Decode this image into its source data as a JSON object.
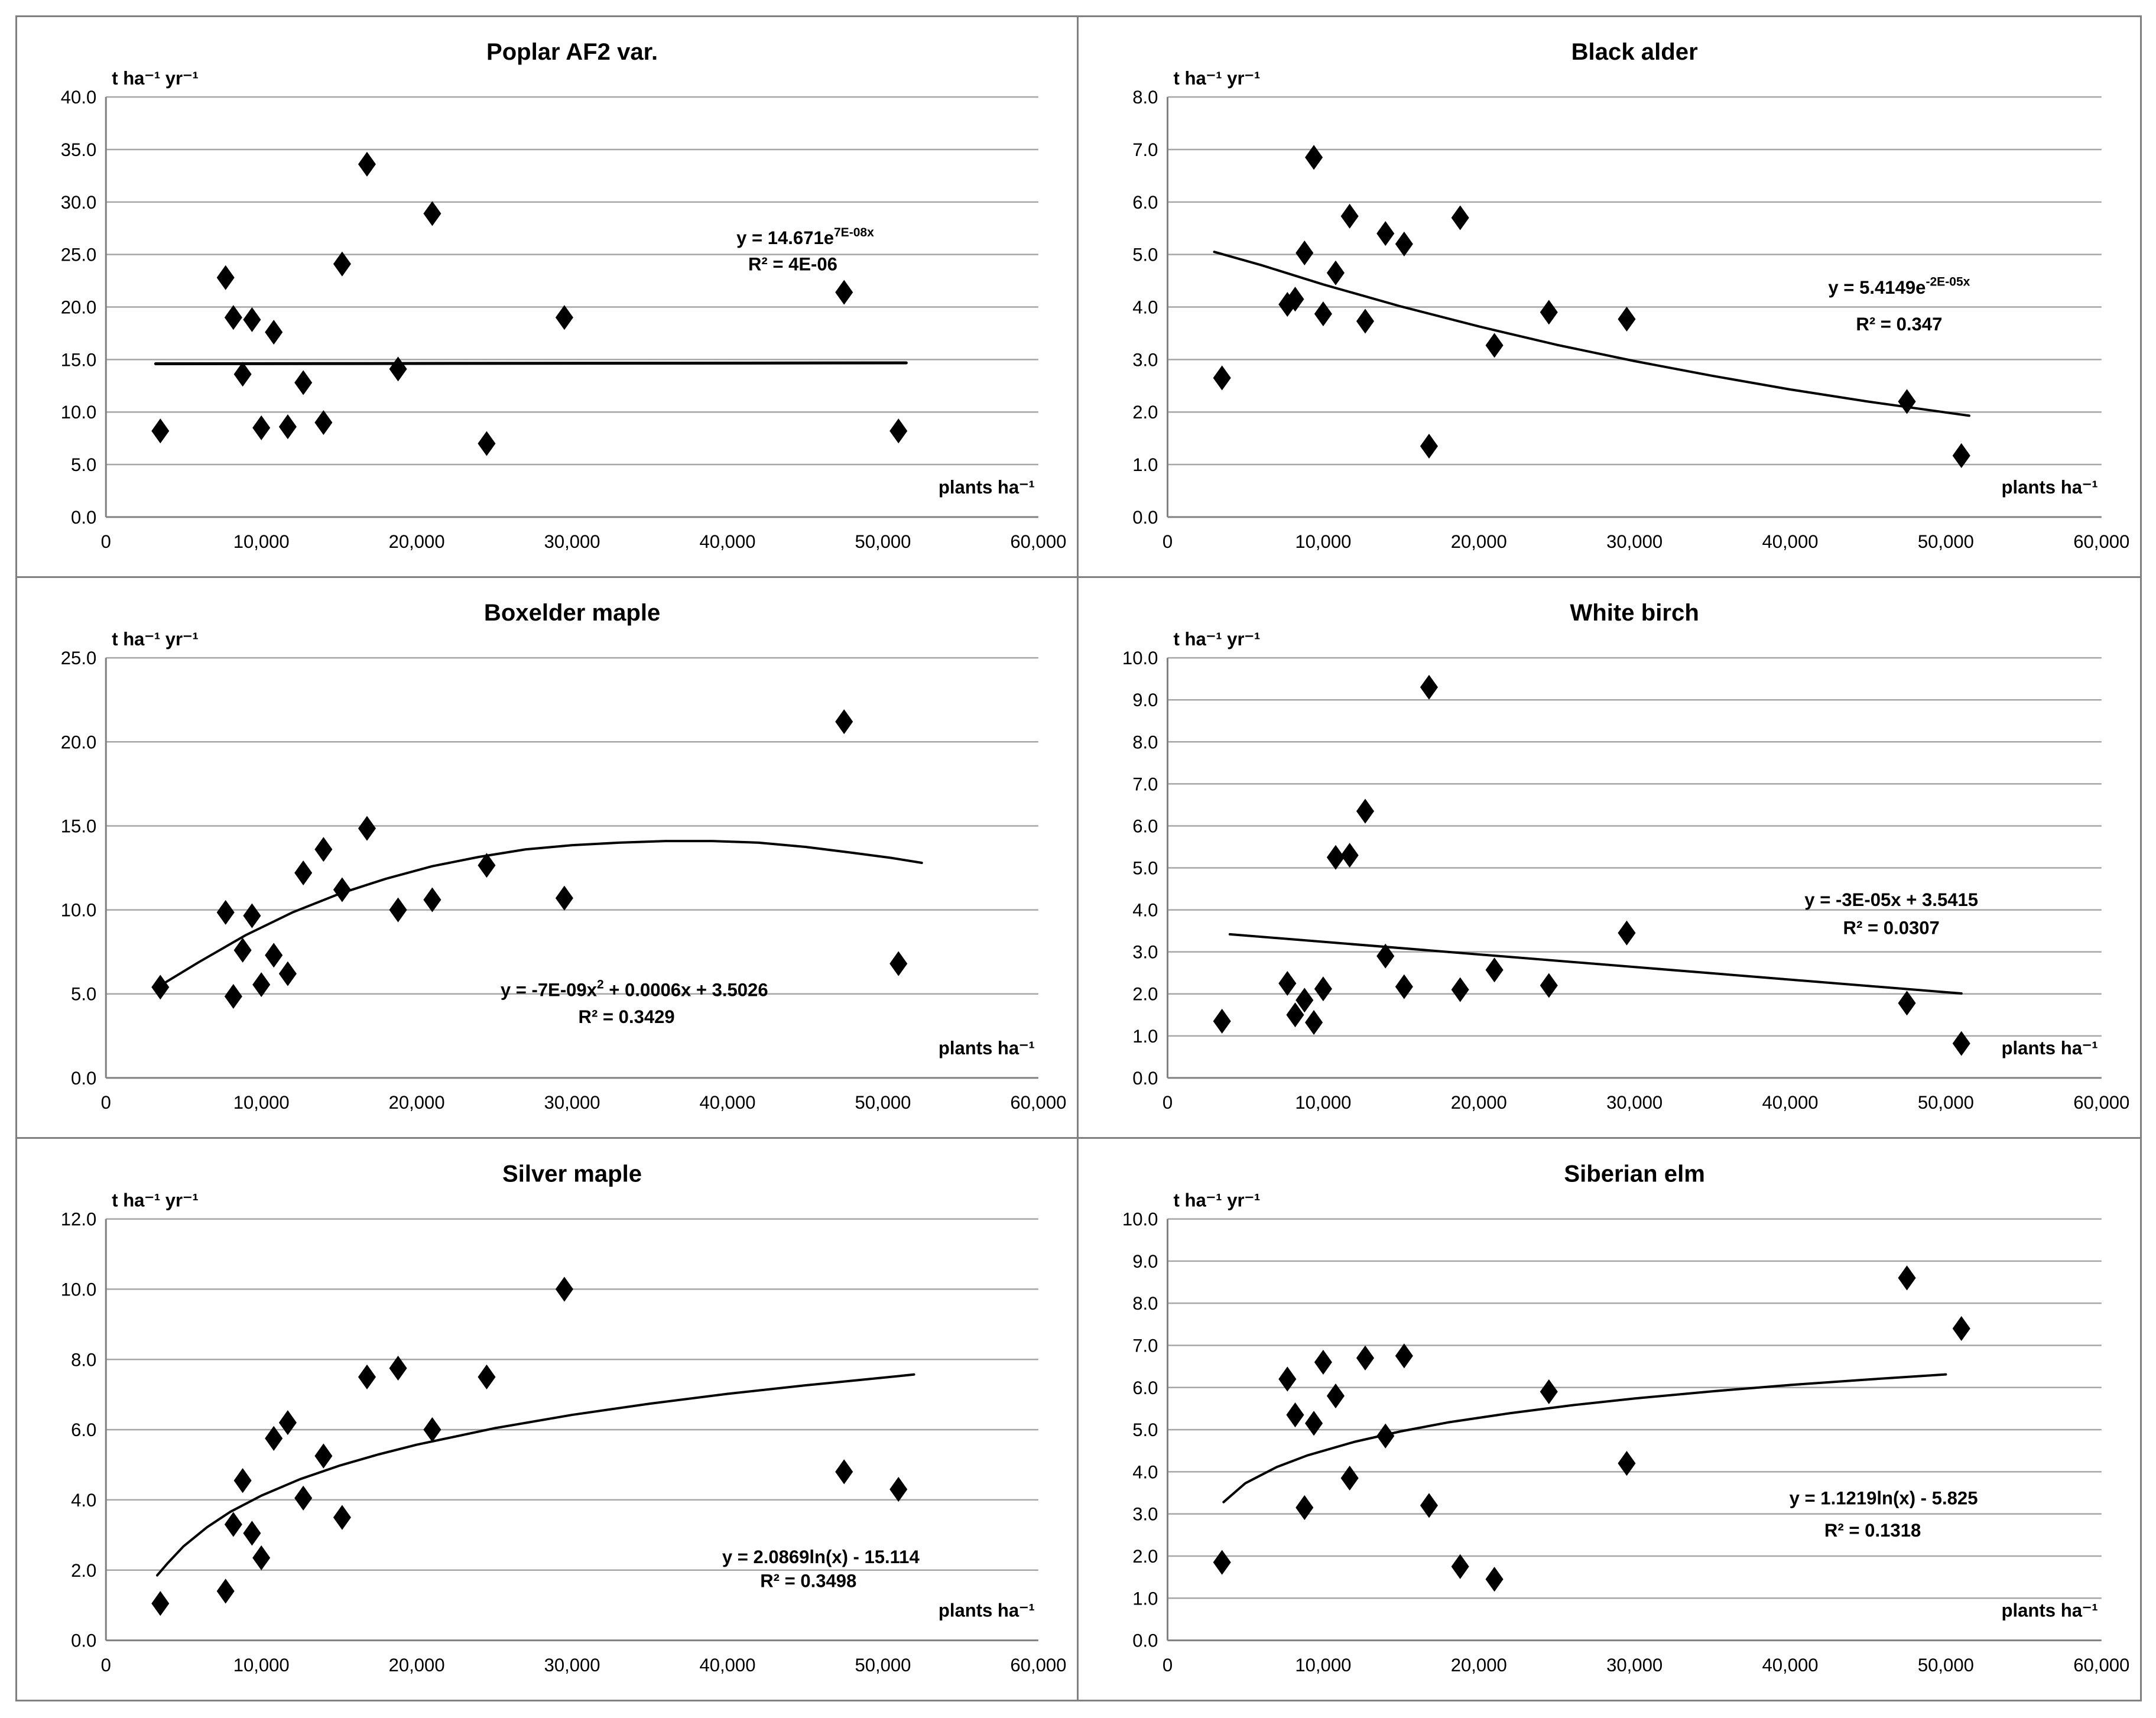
{
  "figure": {
    "background": "#ffffff",
    "panel_border_color": "#808080",
    "gridline_color": "#a6a6a6",
    "axis_color": "#808080",
    "marker_color": "#000000",
    "trendline_color": "#000000",
    "text_color": "#000000"
  },
  "chart_data": [
    {
      "type": "scatter",
      "title": "Poplar AF2 var.",
      "ylabel": "t ha⁻¹ yr⁻¹",
      "xlabel": "plants ha⁻¹",
      "xlim": [
        0,
        60000
      ],
      "ylim": [
        0,
        40
      ],
      "grid": true,
      "xtick_labels": [
        "0",
        "10,000",
        "20,000",
        "30,000",
        "40,000",
        "50,000",
        "60,000"
      ],
      "ytick_labels": [
        "0.0",
        "5.0",
        "10.0",
        "15.0",
        "20.0",
        "25.0",
        "30.0",
        "35.0",
        "40.0"
      ],
      "x": [
        3500,
        7700,
        8200,
        8800,
        9400,
        10000,
        10800,
        11700,
        12700,
        14000,
        15200,
        16800,
        18800,
        21000,
        24500,
        29500,
        47500,
        51000
      ],
      "y": [
        8.2,
        22.8,
        19.0,
        13.6,
        18.8,
        8.5,
        17.6,
        8.6,
        12.8,
        9.0,
        24.1,
        33.6,
        14.1,
        28.9,
        7.0,
        19.0,
        21.4,
        8.2
      ],
      "trend": {
        "shape": "exponential-flat",
        "width": 5,
        "points": [
          [
            3200,
            14.6
          ],
          [
            51500,
            14.68
          ]
        ]
      },
      "equation": {
        "parts": [
          {
            "t": "y = 14.671e"
          },
          {
            "t": "7E-08x",
            "sup": true
          }
        ],
        "r2": "R² = 4E-06",
        "pos": [
          45000,
          26.6
        ],
        "r2_pos": [
          44200,
          24.1
        ]
      }
    },
    {
      "type": "scatter",
      "title": "Black alder",
      "ylabel": "t ha⁻¹ yr⁻¹",
      "xlabel": "plants ha⁻¹",
      "xlim": [
        0,
        60000
      ],
      "ylim": [
        0,
        8
      ],
      "grid": true,
      "xtick_labels": [
        "0",
        "10,000",
        "20,000",
        "30,000",
        "40,000",
        "50,000",
        "60,000"
      ],
      "ytick_labels": [
        "0.0",
        "1.0",
        "2.0",
        "3.0",
        "4.0",
        "5.0",
        "6.0",
        "7.0",
        "8.0"
      ],
      "x": [
        3500,
        7700,
        8200,
        8800,
        9400,
        10000,
        10800,
        11700,
        12700,
        14000,
        15200,
        16800,
        18800,
        21000,
        24500,
        29500,
        47500,
        51000
      ],
      "y": [
        2.65,
        4.05,
        4.15,
        5.03,
        6.85,
        3.87,
        4.65,
        5.73,
        3.73,
        5.4,
        5.2,
        1.35,
        5.7,
        3.27,
        3.9,
        3.77,
        2.2,
        1.17
      ],
      "trend": {
        "shape": "exponential-decay",
        "width": 4,
        "points": [
          [
            3000,
            5.05
          ],
          [
            6000,
            4.8
          ],
          [
            10000,
            4.43
          ],
          [
            15000,
            4.01
          ],
          [
            20000,
            3.63
          ],
          [
            25000,
            3.28
          ],
          [
            30000,
            2.97
          ],
          [
            35000,
            2.69
          ],
          [
            40000,
            2.43
          ],
          [
            45000,
            2.2
          ],
          [
            51500,
            1.93
          ]
        ]
      },
      "equation": {
        "parts": [
          {
            "t": "y = 5.4149e"
          },
          {
            "t": "-2E-05x",
            "sup": true
          }
        ],
        "r2": "R² = 0.347",
        "pos": [
          47000,
          4.38
        ],
        "r2_pos": [
          47000,
          3.68
        ]
      }
    },
    {
      "type": "scatter",
      "title": "Boxelder maple",
      "ylabel": "t ha⁻¹ yr⁻¹",
      "xlabel": "plants ha⁻¹",
      "xlim": [
        0,
        60000
      ],
      "ylim": [
        0,
        25
      ],
      "grid": true,
      "xtick_labels": [
        "0",
        "10,000",
        "20,000",
        "30,000",
        "40,000",
        "50,000",
        "60,000"
      ],
      "ytick_labels": [
        "0.0",
        "5.0",
        "10.0",
        "15.0",
        "20.0",
        "25.0"
      ],
      "x": [
        3500,
        7700,
        8200,
        8800,
        9400,
        10000,
        10800,
        11700,
        12700,
        14000,
        15200,
        16800,
        18800,
        21000,
        24500,
        29500,
        47500,
        51000
      ],
      "y": [
        5.4,
        9.85,
        4.85,
        7.6,
        9.65,
        5.55,
        7.3,
        6.2,
        12.2,
        13.6,
        11.2,
        14.85,
        10.0,
        10.6,
        12.65,
        10.7,
        21.2,
        6.8
      ],
      "trend": {
        "shape": "polynomial",
        "width": 4,
        "points": [
          [
            3500,
            5.5
          ],
          [
            6000,
            6.9
          ],
          [
            9000,
            8.5
          ],
          [
            12000,
            9.85
          ],
          [
            15000,
            10.95
          ],
          [
            18000,
            11.85
          ],
          [
            21000,
            12.6
          ],
          [
            24000,
            13.15
          ],
          [
            27000,
            13.6
          ],
          [
            30000,
            13.85
          ],
          [
            33000,
            14.0
          ],
          [
            36000,
            14.1
          ],
          [
            39000,
            14.1
          ],
          [
            42000,
            14.0
          ],
          [
            45000,
            13.75
          ],
          [
            48000,
            13.4
          ],
          [
            50500,
            13.1
          ],
          [
            52500,
            12.8
          ]
        ]
      },
      "equation": {
        "parts": [
          {
            "t": "y = -7E-09x"
          },
          {
            "t": "2",
            "sup": true
          },
          {
            "t": " + 0.0006x + 3.5026"
          }
        ],
        "r2": "R² = 0.3429",
        "pos": [
          34000,
          5.25
        ],
        "r2_pos": [
          33500,
          3.65
        ]
      }
    },
    {
      "type": "scatter",
      "title": "White birch",
      "ylabel": "t ha⁻¹ yr⁻¹",
      "xlabel": "plants ha⁻¹",
      "xlim": [
        0,
        60000
      ],
      "ylim": [
        0,
        10
      ],
      "grid": true,
      "xtick_labels": [
        "0",
        "10,000",
        "20,000",
        "30,000",
        "40,000",
        "50,000",
        "60,000"
      ],
      "ytick_labels": [
        "0.0",
        "1.0",
        "2.0",
        "3.0",
        "4.0",
        "5.0",
        "6.0",
        "7.0",
        "8.0",
        "9.0",
        "10.0"
      ],
      "x": [
        3500,
        7700,
        8200,
        8800,
        9400,
        10000,
        10800,
        11700,
        12700,
        14000,
        15200,
        16800,
        18800,
        21000,
        24500,
        29500,
        47500,
        51000
      ],
      "y": [
        1.35,
        2.25,
        1.5,
        1.85,
        1.32,
        2.12,
        5.25,
        5.3,
        6.35,
        2.9,
        2.17,
        9.3,
        2.1,
        2.57,
        2.2,
        3.45,
        1.78,
        0.82
      ],
      "trend": {
        "shape": "linear",
        "width": 4,
        "points": [
          [
            4000,
            3.42
          ],
          [
            51000,
            2.01
          ]
        ]
      },
      "equation": {
        "parts": [
          {
            "t": "y = -3E-05x + 3.5415"
          }
        ],
        "r2": "R² = 0.0307",
        "pos": [
          46500,
          4.25
        ],
        "r2_pos": [
          46500,
          3.58
        ]
      }
    },
    {
      "type": "scatter",
      "title": "Silver maple",
      "ylabel": "t ha⁻¹ yr⁻¹",
      "xlabel": "plants ha⁻¹",
      "xlim": [
        0,
        60000
      ],
      "ylim": [
        0,
        12
      ],
      "grid": true,
      "xtick_labels": [
        "0",
        "10,000",
        "20,000",
        "30,000",
        "40,000",
        "50,000",
        "60,000"
      ],
      "ytick_labels": [
        "0.0",
        "2.0",
        "4.0",
        "6.0",
        "8.0",
        "10.0",
        "12.0"
      ],
      "x": [
        3500,
        7700,
        8200,
        8800,
        9400,
        10000,
        10800,
        11700,
        12700,
        14000,
        15200,
        16800,
        18800,
        21000,
        24500,
        29500,
        47500,
        51000
      ],
      "y": [
        1.05,
        1.4,
        3.3,
        4.55,
        3.05,
        2.35,
        5.75,
        6.2,
        4.05,
        5.25,
        3.5,
        7.5,
        7.75,
        6.0,
        7.5,
        10.0,
        4.8,
        4.3
      ],
      "trend": {
        "shape": "logarithmic",
        "width": 4,
        "points": [
          [
            3300,
            1.85
          ],
          [
            4000,
            2.21
          ],
          [
            5000,
            2.68
          ],
          [
            6500,
            3.22
          ],
          [
            8000,
            3.66
          ],
          [
            10000,
            4.12
          ],
          [
            12500,
            4.59
          ],
          [
            15000,
            4.97
          ],
          [
            17500,
            5.29
          ],
          [
            20000,
            5.57
          ],
          [
            25000,
            6.04
          ],
          [
            30000,
            6.42
          ],
          [
            35000,
            6.74
          ],
          [
            40000,
            7.02
          ],
          [
            45000,
            7.26
          ],
          [
            50000,
            7.48
          ],
          [
            52000,
            7.57
          ]
        ]
      },
      "equation": {
        "parts": [
          {
            "t": "y = 2.0869ln(x) - 15.114"
          }
        ],
        "r2": "R² = 0.3498",
        "pos": [
          46000,
          2.38
        ],
        "r2_pos": [
          45200,
          1.7
        ]
      }
    },
    {
      "type": "scatter",
      "title": "Siberian elm",
      "ylabel": "t ha⁻¹ yr⁻¹",
      "xlabel": "plants ha⁻¹",
      "xlim": [
        0,
        60000
      ],
      "ylim": [
        0,
        10
      ],
      "grid": true,
      "xtick_labels": [
        "0",
        "10,000",
        "20,000",
        "30,000",
        "40,000",
        "50,000",
        "60,000"
      ],
      "ytick_labels": [
        "0.0",
        "1.0",
        "2.0",
        "3.0",
        "4.0",
        "5.0",
        "6.0",
        "7.0",
        "8.0",
        "9.0",
        "10.0"
      ],
      "x": [
        3500,
        7700,
        8200,
        8800,
        9400,
        10000,
        10800,
        11700,
        12700,
        14000,
        15200,
        16800,
        18800,
        21000,
        24500,
        29500,
        47500,
        51000
      ],
      "y": [
        1.85,
        6.2,
        5.35,
        3.15,
        5.15,
        6.6,
        5.8,
        3.85,
        6.7,
        4.85,
        6.75,
        3.2,
        1.75,
        1.45,
        5.9,
        4.2,
        8.6,
        7.4
      ],
      "trend": {
        "shape": "logarithmic",
        "width": 4,
        "points": [
          [
            3600,
            3.28
          ],
          [
            5000,
            3.73
          ],
          [
            7000,
            4.11
          ],
          [
            9000,
            4.39
          ],
          [
            12000,
            4.71
          ],
          [
            15000,
            4.96
          ],
          [
            18000,
            5.17
          ],
          [
            22000,
            5.39
          ],
          [
            26000,
            5.58
          ],
          [
            30000,
            5.74
          ],
          [
            35000,
            5.91
          ],
          [
            40000,
            6.06
          ],
          [
            45000,
            6.19
          ],
          [
            50000,
            6.31
          ]
        ]
      },
      "equation": {
        "parts": [
          {
            "t": "y = 1.1219ln(x) - 5.825"
          }
        ],
        "r2": "R² = 0.1318",
        "pos": [
          46000,
          3.38
        ],
        "r2_pos": [
          45300,
          2.62
        ]
      }
    }
  ]
}
